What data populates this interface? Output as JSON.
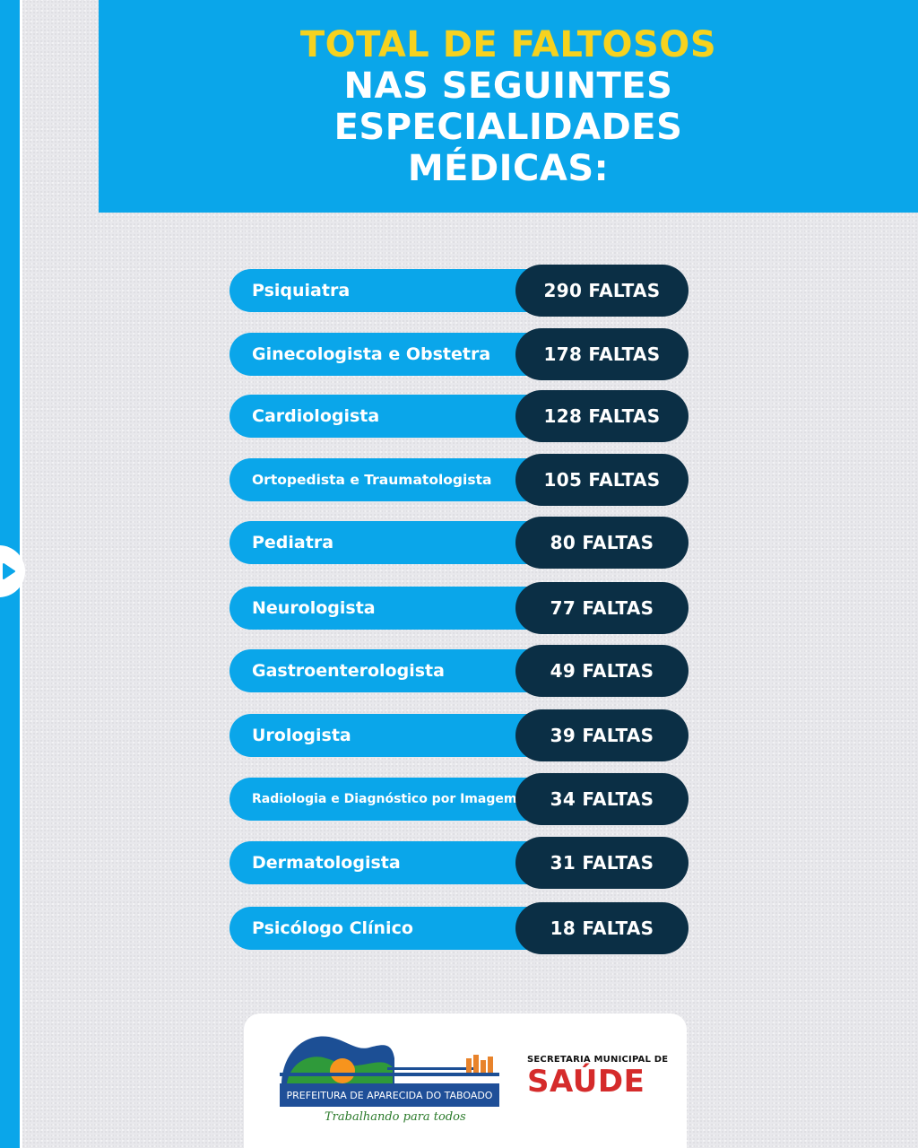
{
  "header": {
    "line1": "TOTAL DE FALTOSOS",
    "line2": "NAS SEGUINTES",
    "line3": "ESPECIALIDADES",
    "line4": "MÉDICAS:"
  },
  "specialties": [
    {
      "name": "Psiquiatra",
      "count": "290 FALTAS"
    },
    {
      "name": "Ginecologista e Obstetra",
      "count": "178 FALTAS"
    },
    {
      "name": "Cardiologista",
      "count": "128 FALTAS"
    },
    {
      "name": "Ortopedista e Traumatologista",
      "count": "105 FALTAS"
    },
    {
      "name": "Pediatra",
      "count": "80 FALTAS"
    },
    {
      "name": "Neurologista",
      "count": "77 FALTAS"
    },
    {
      "name": "Gastroenterologista",
      "count": "49 FALTAS"
    },
    {
      "name": "Urologista",
      "count": "39 FALTAS"
    },
    {
      "name": "Radiologia e Diagnóstico por Imagem",
      "count": "34 FALTAS"
    },
    {
      "name": "Dermatologista",
      "count": "31 FALTAS"
    },
    {
      "name": "Psicólogo Clínico",
      "count": "18 FALTAS"
    }
  ],
  "footer": {
    "prefeitura": "PREFEITURA DE APARECIDA DO TABOADO",
    "tagline": "Trabalhando para todos",
    "secretaria": "SECRETARIA MUNICIPAL DE",
    "saude": "SAÚDE"
  },
  "colors": {
    "accent_blue": "#0aa6ea",
    "dark_navy": "#0b2f45",
    "title_yellow": "#f6d21f",
    "saude_red": "#d52b2b"
  },
  "icons": {
    "next": "chevron-right-icon"
  }
}
